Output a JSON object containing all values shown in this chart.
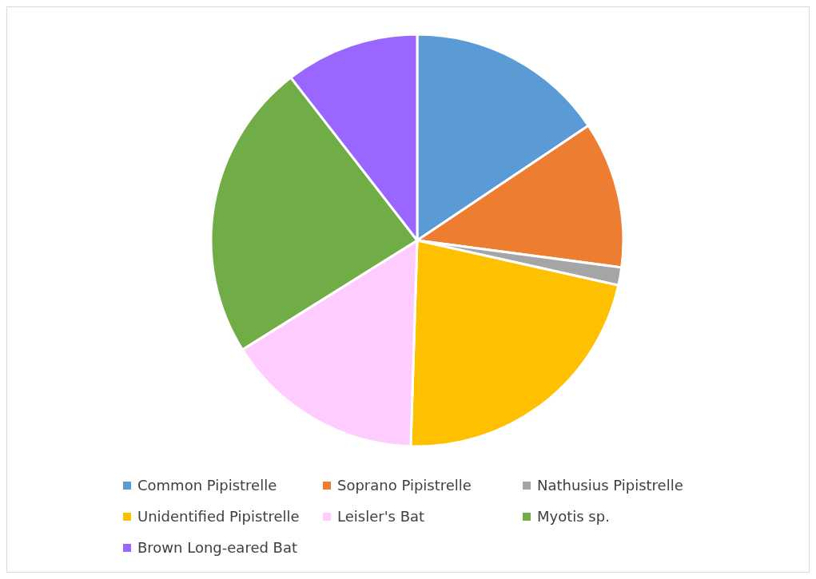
{
  "chart_data": {
    "type": "pie",
    "categories": [
      "Common Pipistrelle",
      "Soprano Pipistrelle",
      "Nathusius Pipistrelle",
      "Unidentified Pipistrelle",
      "Leisler's Bat",
      "Myotis sp.",
      "Brown Long-eared Bat"
    ],
    "values": [
      15.6,
      11.5,
      1.4,
      22,
      15.6,
      23.4,
      10.5
    ],
    "colors": [
      "#5b9bd5",
      "#ed7d31",
      "#a5a5a5",
      "#ffc000",
      "#ffccff",
      "#70ad47",
      "#9966ff"
    ],
    "legend": "bottom"
  }
}
